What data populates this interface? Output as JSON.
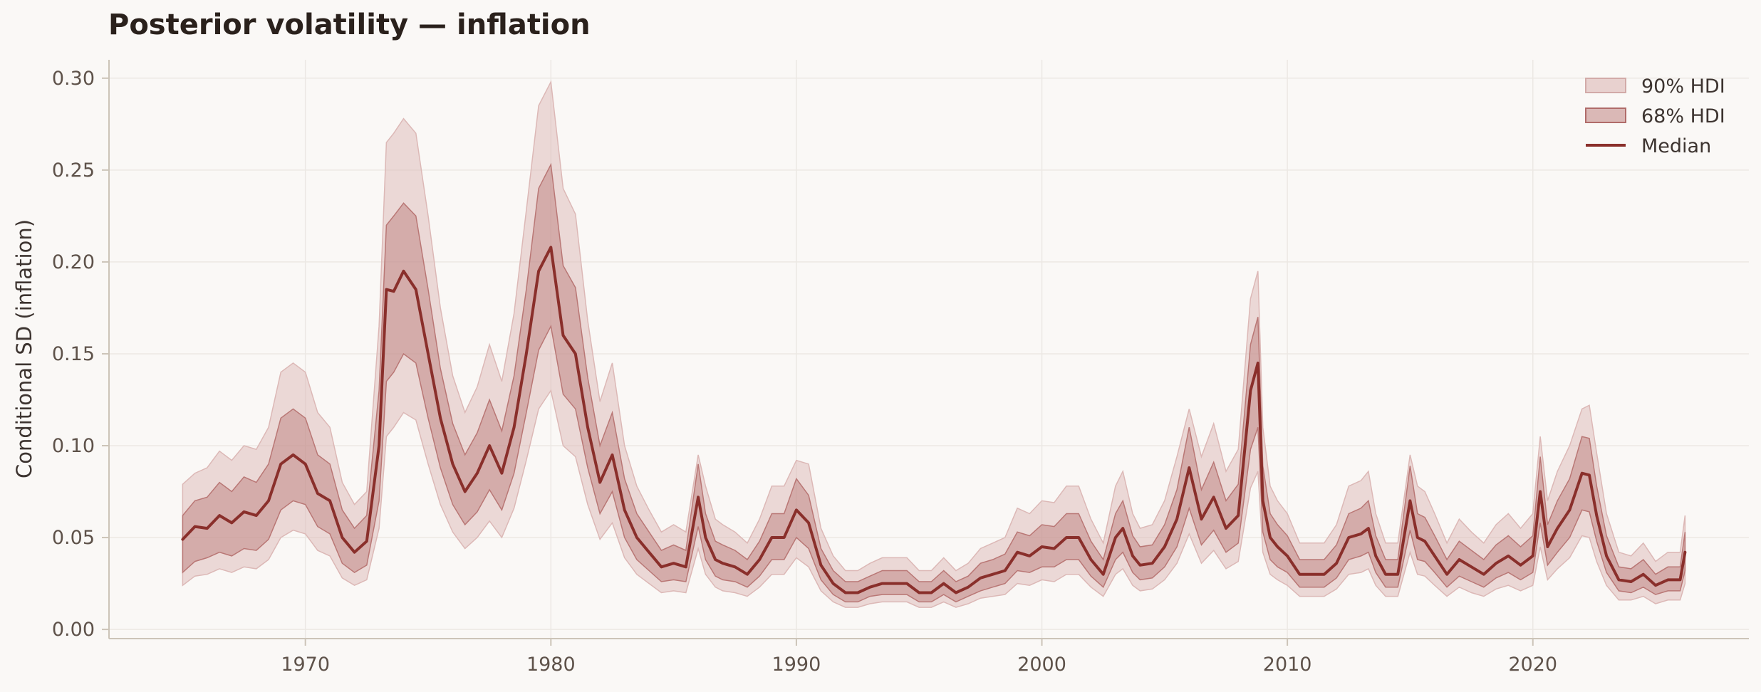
{
  "chart_data": {
    "type": "area",
    "title": "Posterior volatility — inflation",
    "xlabel": "",
    "ylabel": "Conditional SD (inflation)",
    "xlim": [
      1962.0,
      2028.8
    ],
    "ylim": [
      -0.005,
      0.31
    ],
    "x_ticks": [
      1970,
      1980,
      1990,
      2000,
      2010,
      2020
    ],
    "x_tick_labels": [
      "1970",
      "1980",
      "1990",
      "2000",
      "2010",
      "2020"
    ],
    "y_ticks": [
      0.0,
      0.05,
      0.1,
      0.15,
      0.2,
      0.25,
      0.3
    ],
    "y_tick_labels": [
      "0.00",
      "0.05",
      "0.10",
      "0.15",
      "0.20",
      "0.25",
      "0.30"
    ],
    "grid": true,
    "legend_position": "top-right",
    "legend": [
      "90% HDI",
      "68% HDI",
      "Median"
    ],
    "colors": {
      "median": "#8a2f2b",
      "band68": "#b97775",
      "band90": "#dcb8b6",
      "axis": "#ccc4b8",
      "grid": "#ece8e4"
    },
    "x": [
      1965.0,
      1965.5,
      1966.0,
      1966.5,
      1967.0,
      1967.5,
      1968.0,
      1968.5,
      1969.0,
      1969.5,
      1970.0,
      1970.5,
      1971.0,
      1971.5,
      1972.0,
      1972.5,
      1973.0,
      1973.3,
      1973.6,
      1974.0,
      1974.5,
      1975.0,
      1975.5,
      1976.0,
      1976.5,
      1977.0,
      1977.5,
      1978.0,
      1978.5,
      1979.0,
      1979.5,
      1980.0,
      1980.5,
      1981.0,
      1981.5,
      1982.0,
      1982.5,
      1983.0,
      1983.5,
      1984.0,
      1984.5,
      1985.0,
      1985.5,
      1986.0,
      1986.3,
      1986.7,
      1987.0,
      1987.5,
      1988.0,
      1988.5,
      1989.0,
      1989.5,
      1990.0,
      1990.5,
      1991.0,
      1991.5,
      1992.0,
      1992.5,
      1993.0,
      1993.5,
      1994.0,
      1994.5,
      1995.0,
      1995.5,
      1996.0,
      1996.5,
      1997.0,
      1997.5,
      1998.0,
      1998.5,
      1999.0,
      1999.5,
      2000.0,
      2000.5,
      2001.0,
      2001.5,
      2002.0,
      2002.5,
      2003.0,
      2003.3,
      2003.7,
      2004.0,
      2004.5,
      2005.0,
      2005.5,
      2006.0,
      2006.5,
      2007.0,
      2007.5,
      2008.0,
      2008.5,
      2008.8,
      2009.0,
      2009.3,
      2009.6,
      2010.0,
      2010.5,
      2011.0,
      2011.5,
      2012.0,
      2012.5,
      2013.0,
      2013.3,
      2013.6,
      2014.0,
      2014.5,
      2015.0,
      2015.3,
      2015.6,
      2016.0,
      2016.5,
      2017.0,
      2017.5,
      2018.0,
      2018.5,
      2019.0,
      2019.5,
      2020.0,
      2020.3,
      2020.6,
      2021.0,
      2021.5,
      2022.0,
      2022.3,
      2022.6,
      2023.0,
      2023.5,
      2024.0,
      2024.5,
      2025.0,
      2025.5,
      2026.0,
      2026.2
    ],
    "series": [
      {
        "name": "Median",
        "values": [
          0.049,
          0.056,
          0.055,
          0.062,
          0.058,
          0.064,
          0.062,
          0.07,
          0.09,
          0.095,
          0.09,
          0.074,
          0.07,
          0.05,
          0.042,
          0.048,
          0.1,
          0.185,
          0.184,
          0.195,
          0.185,
          0.15,
          0.115,
          0.09,
          0.075,
          0.085,
          0.1,
          0.085,
          0.11,
          0.15,
          0.195,
          0.208,
          0.16,
          0.15,
          0.11,
          0.08,
          0.095,
          0.065,
          0.05,
          0.042,
          0.034,
          0.036,
          0.034,
          0.072,
          0.05,
          0.038,
          0.036,
          0.034,
          0.03,
          0.038,
          0.05,
          0.05,
          0.065,
          0.058,
          0.035,
          0.025,
          0.02,
          0.02,
          0.023,
          0.025,
          0.025,
          0.025,
          0.02,
          0.02,
          0.025,
          0.02,
          0.023,
          0.028,
          0.03,
          0.032,
          0.042,
          0.04,
          0.045,
          0.044,
          0.05,
          0.05,
          0.038,
          0.03,
          0.05,
          0.055,
          0.04,
          0.035,
          0.036,
          0.045,
          0.06,
          0.088,
          0.06,
          0.072,
          0.055,
          0.062,
          0.13,
          0.145,
          0.07,
          0.05,
          0.045,
          0.04,
          0.03,
          0.03,
          0.03,
          0.036,
          0.05,
          0.052,
          0.055,
          0.04,
          0.03,
          0.03,
          0.07,
          0.05,
          0.048,
          0.04,
          0.03,
          0.038,
          0.034,
          0.03,
          0.036,
          0.04,
          0.035,
          0.04,
          0.075,
          0.045,
          0.055,
          0.065,
          0.085,
          0.084,
          0.062,
          0.04,
          0.027,
          0.026,
          0.03,
          0.024,
          0.027,
          0.027,
          0.042
        ]
      },
      {
        "name": "68% HDI",
        "lower": [
          0.031,
          0.037,
          0.039,
          0.042,
          0.04,
          0.044,
          0.043,
          0.049,
          0.065,
          0.07,
          0.068,
          0.056,
          0.052,
          0.036,
          0.031,
          0.035,
          0.07,
          0.135,
          0.14,
          0.15,
          0.145,
          0.115,
          0.088,
          0.068,
          0.057,
          0.064,
          0.076,
          0.065,
          0.085,
          0.118,
          0.152,
          0.165,
          0.128,
          0.12,
          0.088,
          0.063,
          0.075,
          0.05,
          0.038,
          0.032,
          0.026,
          0.027,
          0.026,
          0.056,
          0.038,
          0.029,
          0.027,
          0.026,
          0.023,
          0.029,
          0.038,
          0.038,
          0.05,
          0.044,
          0.027,
          0.019,
          0.015,
          0.015,
          0.018,
          0.019,
          0.019,
          0.019,
          0.015,
          0.015,
          0.019,
          0.015,
          0.018,
          0.021,
          0.023,
          0.025,
          0.032,
          0.031,
          0.034,
          0.034,
          0.038,
          0.038,
          0.029,
          0.023,
          0.038,
          0.042,
          0.031,
          0.027,
          0.028,
          0.034,
          0.045,
          0.066,
          0.046,
          0.054,
          0.042,
          0.047,
          0.098,
          0.11,
          0.053,
          0.038,
          0.034,
          0.031,
          0.023,
          0.023,
          0.023,
          0.028,
          0.038,
          0.04,
          0.042,
          0.031,
          0.023,
          0.023,
          0.054,
          0.038,
          0.037,
          0.031,
          0.023,
          0.029,
          0.026,
          0.023,
          0.028,
          0.031,
          0.027,
          0.031,
          0.058,
          0.035,
          0.042,
          0.05,
          0.065,
          0.064,
          0.048,
          0.031,
          0.021,
          0.02,
          0.023,
          0.019,
          0.021,
          0.021,
          0.032
        ],
        "upper": [
          0.062,
          0.07,
          0.072,
          0.08,
          0.075,
          0.083,
          0.08,
          0.09,
          0.115,
          0.12,
          0.115,
          0.095,
          0.09,
          0.065,
          0.055,
          0.062,
          0.13,
          0.22,
          0.225,
          0.232,
          0.225,
          0.185,
          0.142,
          0.112,
          0.095,
          0.107,
          0.125,
          0.108,
          0.138,
          0.185,
          0.24,
          0.253,
          0.198,
          0.186,
          0.137,
          0.1,
          0.118,
          0.082,
          0.063,
          0.053,
          0.043,
          0.046,
          0.043,
          0.09,
          0.063,
          0.048,
          0.046,
          0.043,
          0.038,
          0.048,
          0.063,
          0.063,
          0.082,
          0.073,
          0.044,
          0.032,
          0.026,
          0.026,
          0.029,
          0.032,
          0.032,
          0.032,
          0.026,
          0.026,
          0.032,
          0.026,
          0.029,
          0.036,
          0.038,
          0.041,
          0.053,
          0.051,
          0.057,
          0.056,
          0.063,
          0.063,
          0.048,
          0.038,
          0.063,
          0.07,
          0.051,
          0.045,
          0.046,
          0.057,
          0.076,
          0.11,
          0.076,
          0.091,
          0.07,
          0.079,
          0.155,
          0.17,
          0.089,
          0.063,
          0.057,
          0.051,
          0.038,
          0.038,
          0.038,
          0.046,
          0.063,
          0.066,
          0.07,
          0.051,
          0.038,
          0.038,
          0.089,
          0.063,
          0.061,
          0.051,
          0.038,
          0.048,
          0.043,
          0.038,
          0.046,
          0.051,
          0.045,
          0.051,
          0.094,
          0.057,
          0.07,
          0.082,
          0.105,
          0.104,
          0.078,
          0.051,
          0.034,
          0.033,
          0.038,
          0.03,
          0.034,
          0.034,
          0.053
        ]
      },
      {
        "name": "90% HDI",
        "lower": [
          0.024,
          0.029,
          0.03,
          0.033,
          0.031,
          0.034,
          0.033,
          0.038,
          0.05,
          0.054,
          0.052,
          0.043,
          0.04,
          0.028,
          0.024,
          0.027,
          0.055,
          0.105,
          0.11,
          0.118,
          0.114,
          0.09,
          0.068,
          0.053,
          0.044,
          0.05,
          0.059,
          0.05,
          0.066,
          0.092,
          0.12,
          0.13,
          0.1,
          0.094,
          0.068,
          0.049,
          0.058,
          0.039,
          0.03,
          0.025,
          0.02,
          0.021,
          0.02,
          0.044,
          0.03,
          0.023,
          0.021,
          0.02,
          0.018,
          0.023,
          0.03,
          0.03,
          0.039,
          0.034,
          0.021,
          0.015,
          0.012,
          0.012,
          0.014,
          0.015,
          0.015,
          0.015,
          0.012,
          0.012,
          0.015,
          0.012,
          0.014,
          0.017,
          0.018,
          0.019,
          0.025,
          0.024,
          0.027,
          0.026,
          0.03,
          0.03,
          0.023,
          0.018,
          0.03,
          0.033,
          0.024,
          0.021,
          0.022,
          0.027,
          0.036,
          0.052,
          0.036,
          0.043,
          0.033,
          0.037,
          0.077,
          0.086,
          0.042,
          0.03,
          0.027,
          0.024,
          0.018,
          0.018,
          0.018,
          0.022,
          0.03,
          0.031,
          0.033,
          0.024,
          0.018,
          0.018,
          0.042,
          0.03,
          0.029,
          0.024,
          0.018,
          0.023,
          0.02,
          0.018,
          0.022,
          0.024,
          0.021,
          0.024,
          0.045,
          0.027,
          0.033,
          0.039,
          0.051,
          0.05,
          0.037,
          0.024,
          0.016,
          0.016,
          0.018,
          0.014,
          0.016,
          0.016,
          0.025
        ],
        "upper": [
          0.079,
          0.085,
          0.088,
          0.097,
          0.092,
          0.1,
          0.098,
          0.11,
          0.14,
          0.145,
          0.14,
          0.118,
          0.11,
          0.08,
          0.068,
          0.075,
          0.165,
          0.265,
          0.27,
          0.278,
          0.27,
          0.225,
          0.175,
          0.138,
          0.118,
          0.132,
          0.155,
          0.135,
          0.172,
          0.228,
          0.285,
          0.298,
          0.24,
          0.226,
          0.168,
          0.124,
          0.145,
          0.1,
          0.078,
          0.065,
          0.053,
          0.057,
          0.053,
          0.095,
          0.078,
          0.06,
          0.057,
          0.053,
          0.047,
          0.06,
          0.078,
          0.078,
          0.092,
          0.09,
          0.055,
          0.04,
          0.032,
          0.032,
          0.036,
          0.039,
          0.039,
          0.039,
          0.032,
          0.032,
          0.039,
          0.032,
          0.036,
          0.044,
          0.047,
          0.05,
          0.066,
          0.063,
          0.07,
          0.069,
          0.078,
          0.078,
          0.06,
          0.047,
          0.078,
          0.086,
          0.063,
          0.055,
          0.057,
          0.07,
          0.094,
          0.12,
          0.094,
          0.112,
          0.086,
          0.098,
          0.18,
          0.195,
          0.11,
          0.078,
          0.07,
          0.063,
          0.047,
          0.047,
          0.047,
          0.057,
          0.078,
          0.081,
          0.086,
          0.063,
          0.047,
          0.047,
          0.095,
          0.078,
          0.075,
          0.063,
          0.047,
          0.06,
          0.053,
          0.047,
          0.057,
          0.063,
          0.055,
          0.063,
          0.105,
          0.07,
          0.086,
          0.1,
          0.12,
          0.122,
          0.096,
          0.063,
          0.042,
          0.04,
          0.047,
          0.037,
          0.042,
          0.042,
          0.062
        ]
      }
    ]
  }
}
